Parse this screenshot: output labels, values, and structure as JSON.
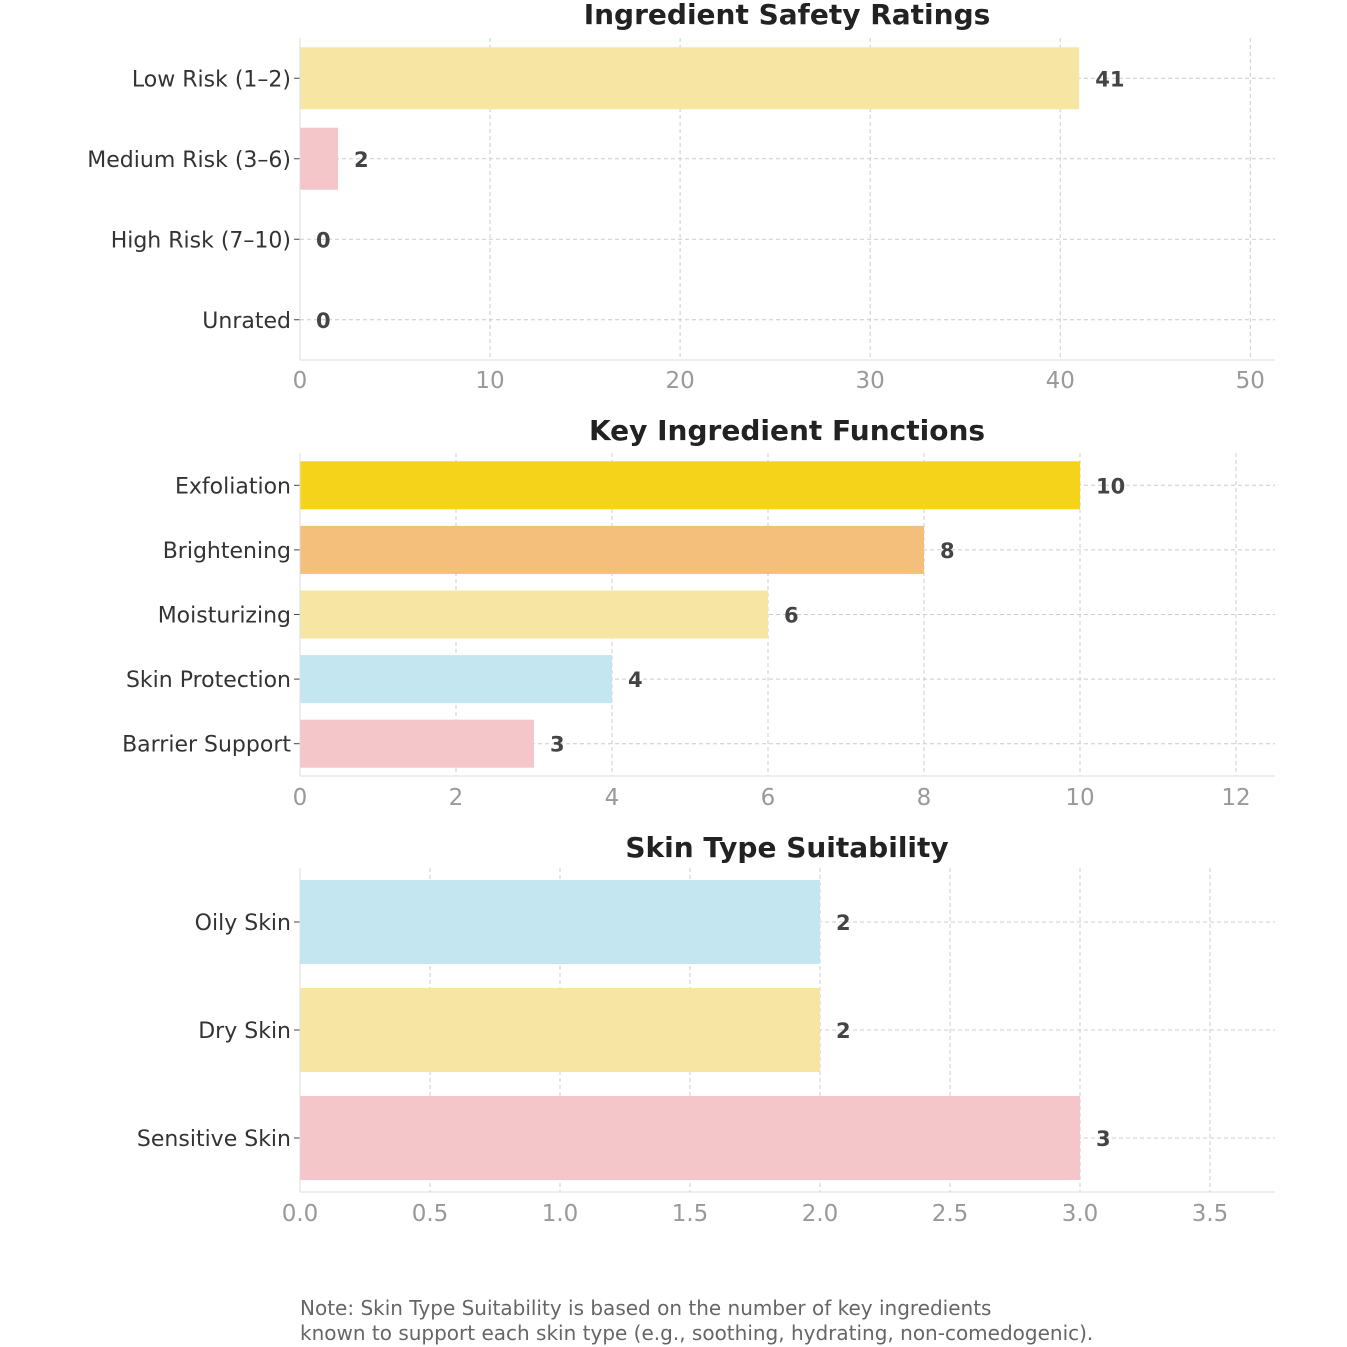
{
  "chart_data": [
    {
      "type": "bar",
      "orientation": "horizontal",
      "title": "Ingredient Safety Ratings",
      "categories": [
        "Low Risk (1–2)",
        "Medium Risk (3–6)",
        "High Risk (7–10)",
        "Unrated"
      ],
      "values": [
        41,
        2,
        0,
        0
      ],
      "colors": [
        "#f7e6a3",
        "#f4c6ca",
        "#f4c6ca",
        "#c4e6f1"
      ],
      "xticks": [
        "0",
        "10",
        "20",
        "30",
        "40",
        "50"
      ],
      "tick_values": [
        0,
        10,
        20,
        30,
        40,
        50
      ],
      "xlim": [
        0,
        51.3
      ],
      "grid": true
    },
    {
      "type": "bar",
      "orientation": "horizontal",
      "title": "Key Ingredient Functions",
      "categories": [
        "Exfoliation",
        "Brightening",
        "Moisturizing",
        "Skin Protection",
        "Barrier Support"
      ],
      "values": [
        10,
        8,
        6,
        4,
        3
      ],
      "colors": [
        "#f5d31b",
        "#f3bf7b",
        "#f7e6a3",
        "#c4e6f1",
        "#f4c6ca"
      ],
      "xticks": [
        "0",
        "2",
        "4",
        "6",
        "8",
        "10",
        "12"
      ],
      "tick_values": [
        0,
        2,
        4,
        6,
        8,
        10,
        12
      ],
      "xlim": [
        0,
        12.5
      ],
      "grid": true
    },
    {
      "type": "bar",
      "orientation": "horizontal",
      "title": "Skin Type Suitability",
      "categories": [
        "Oily Skin",
        "Dry Skin",
        "Sensitive Skin"
      ],
      "values": [
        2,
        2,
        3
      ],
      "colors": [
        "#c4e6f1",
        "#f7e6a3",
        "#f4c6ca"
      ],
      "xticks": [
        "0.0",
        "0.5",
        "1.0",
        "1.5",
        "2.0",
        "2.5",
        "3.0",
        "3.5"
      ],
      "tick_values": [
        0,
        0.5,
        1,
        1.5,
        2,
        2.5,
        3,
        3.5
      ],
      "xlim": [
        0,
        3.75
      ],
      "grid": true
    }
  ],
  "note": {
    "line1": "Note: Skin Type Suitability is based on the number of key ingredients",
    "line2": "known to support each skin type (e.g., soothing, hydrating, non-comedogenic)."
  }
}
